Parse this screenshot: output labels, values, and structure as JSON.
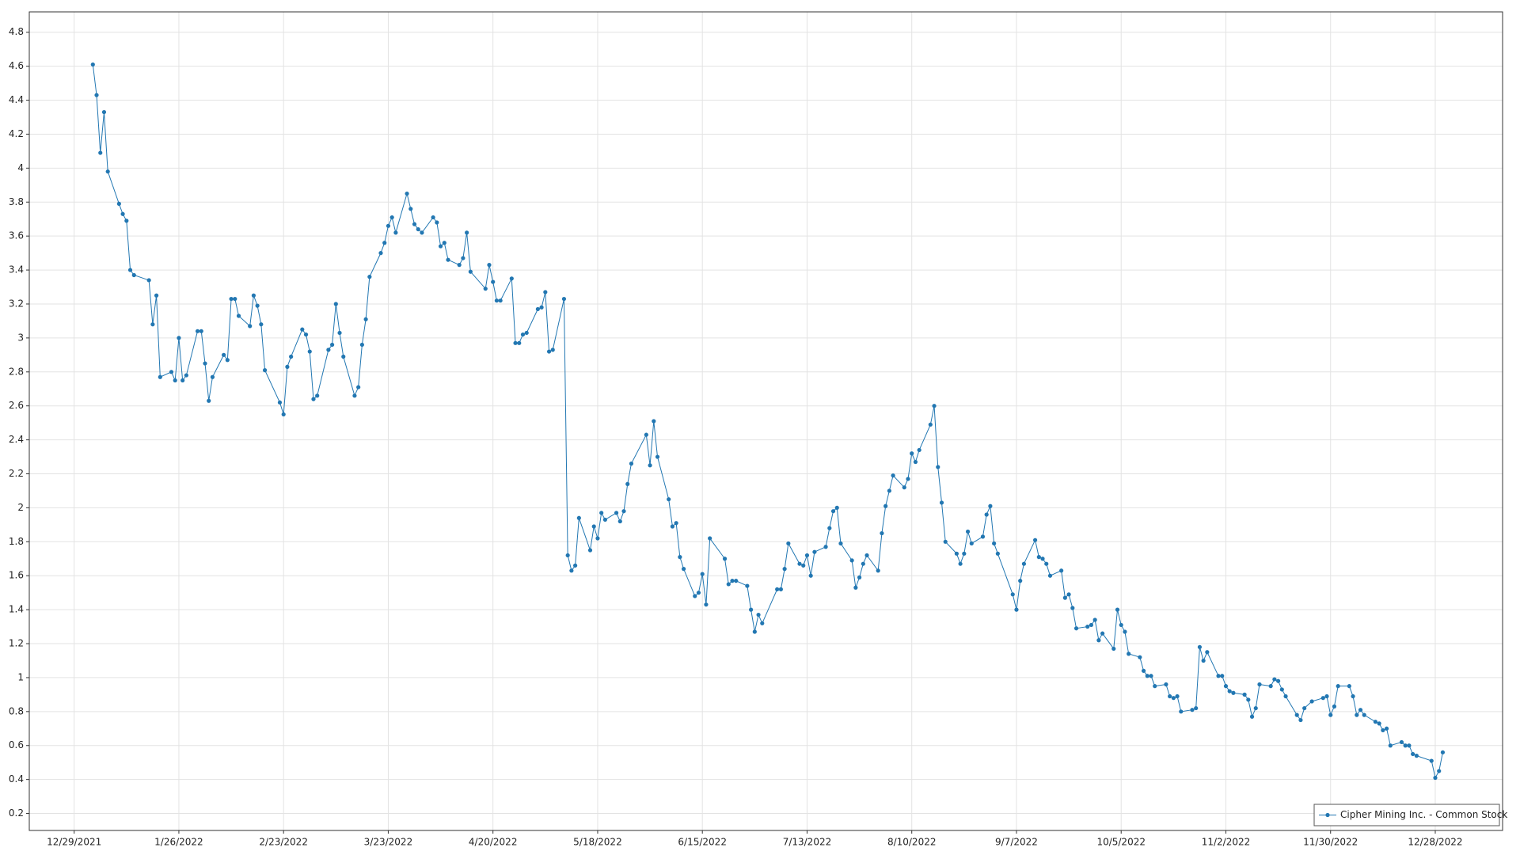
{
  "chart_data": {
    "type": "line",
    "x": [
      "1/3/2022",
      "1/4/2022",
      "1/5/2022",
      "1/6/2022",
      "1/7/2022",
      "1/10/2022",
      "1/11/2022",
      "1/12/2022",
      "1/13/2022",
      "1/14/2022",
      "1/18/2022",
      "1/19/2022",
      "1/20/2022",
      "1/21/2022",
      "1/24/2022",
      "1/25/2022",
      "1/26/2022",
      "1/27/2022",
      "1/28/2022",
      "1/31/2022",
      "2/1/2022",
      "2/2/2022",
      "2/3/2022",
      "2/4/2022",
      "2/7/2022",
      "2/8/2022",
      "2/9/2022",
      "2/10/2022",
      "2/11/2022",
      "2/14/2022",
      "2/15/2022",
      "2/16/2022",
      "2/17/2022",
      "2/18/2022",
      "2/22/2022",
      "2/23/2022",
      "2/24/2022",
      "2/25/2022",
      "2/28/2022",
      "3/1/2022",
      "3/2/2022",
      "3/3/2022",
      "3/4/2022",
      "3/7/2022",
      "3/8/2022",
      "3/9/2022",
      "3/10/2022",
      "3/11/2022",
      "3/14/2022",
      "3/15/2022",
      "3/16/2022",
      "3/17/2022",
      "3/18/2022",
      "3/21/2022",
      "3/22/2022",
      "3/23/2022",
      "3/24/2022",
      "3/25/2022",
      "3/28/2022",
      "3/29/2022",
      "3/30/2022",
      "3/31/2022",
      "4/1/2022",
      "4/4/2022",
      "4/5/2022",
      "4/6/2022",
      "4/7/2022",
      "4/8/2022",
      "4/11/2022",
      "4/12/2022",
      "4/13/2022",
      "4/14/2022",
      "4/18/2022",
      "4/19/2022",
      "4/20/2022",
      "4/21/2022",
      "4/22/2022",
      "4/25/2022",
      "4/26/2022",
      "4/27/2022",
      "4/28/2022",
      "4/29/2022",
      "5/2/2022",
      "5/3/2022",
      "5/4/2022",
      "5/5/2022",
      "5/6/2022",
      "5/9/2022",
      "5/10/2022",
      "5/11/2022",
      "5/12/2022",
      "5/13/2022",
      "5/16/2022",
      "5/17/2022",
      "5/18/2022",
      "5/19/2022",
      "5/20/2022",
      "5/23/2022",
      "5/24/2022",
      "5/25/2022",
      "5/26/2022",
      "5/27/2022",
      "5/31/2022",
      "6/1/2022",
      "6/2/2022",
      "6/3/2022",
      "6/6/2022",
      "6/7/2022",
      "6/8/2022",
      "6/9/2022",
      "6/10/2022",
      "6/13/2022",
      "6/14/2022",
      "6/15/2022",
      "6/16/2022",
      "6/17/2022",
      "6/21/2022",
      "6/22/2022",
      "6/23/2022",
      "6/24/2022",
      "6/27/2022",
      "6/28/2022",
      "6/29/2022",
      "6/30/2022",
      "7/1/2022",
      "7/5/2022",
      "7/6/2022",
      "7/7/2022",
      "7/8/2022",
      "7/11/2022",
      "7/12/2022",
      "7/13/2022",
      "7/14/2022",
      "7/15/2022",
      "7/18/2022",
      "7/19/2022",
      "7/20/2022",
      "7/21/2022",
      "7/22/2022",
      "7/25/2022",
      "7/26/2022",
      "7/27/2022",
      "7/28/2022",
      "7/29/2022",
      "8/1/2022",
      "8/2/2022",
      "8/3/2022",
      "8/4/2022",
      "8/5/2022",
      "8/8/2022",
      "8/9/2022",
      "8/10/2022",
      "8/11/2022",
      "8/12/2022",
      "8/15/2022",
      "8/16/2022",
      "8/17/2022",
      "8/18/2022",
      "8/19/2022",
      "8/22/2022",
      "8/23/2022",
      "8/24/2022",
      "8/25/2022",
      "8/26/2022",
      "8/29/2022",
      "8/30/2022",
      "8/31/2022",
      "9/1/2022",
      "9/2/2022",
      "9/6/2022",
      "9/7/2022",
      "9/8/2022",
      "9/9/2022",
      "9/12/2022",
      "9/13/2022",
      "9/14/2022",
      "9/15/2022",
      "9/16/2022",
      "9/19/2022",
      "9/20/2022",
      "9/21/2022",
      "9/22/2022",
      "9/23/2022",
      "9/26/2022",
      "9/27/2022",
      "9/28/2022",
      "9/29/2022",
      "9/30/2022",
      "10/3/2022",
      "10/4/2022",
      "10/5/2022",
      "10/6/2022",
      "10/7/2022",
      "10/10/2022",
      "10/11/2022",
      "10/12/2022",
      "10/13/2022",
      "10/14/2022",
      "10/17/2022",
      "10/18/2022",
      "10/19/2022",
      "10/20/2022",
      "10/21/2022",
      "10/24/2022",
      "10/25/2022",
      "10/26/2022",
      "10/27/2022",
      "10/28/2022",
      "10/31/2022",
      "11/1/2022",
      "11/2/2022",
      "11/3/2022",
      "11/4/2022",
      "11/7/2022",
      "11/8/2022",
      "11/9/2022",
      "11/10/2022",
      "11/11/2022",
      "11/14/2022",
      "11/15/2022",
      "11/16/2022",
      "11/17/2022",
      "11/18/2022",
      "11/21/2022",
      "11/22/2022",
      "11/23/2022",
      "11/25/2022",
      "11/28/2022",
      "11/29/2022",
      "11/30/2022",
      "12/1/2022",
      "12/2/2022",
      "12/5/2022",
      "12/6/2022",
      "12/7/2022",
      "12/8/2022",
      "12/9/2022",
      "12/12/2022",
      "12/13/2022",
      "12/14/2022",
      "12/15/2022",
      "12/16/2022",
      "12/19/2022",
      "12/20/2022",
      "12/21/2022",
      "12/22/2022",
      "12/23/2022",
      "12/27/2022",
      "12/28/2022",
      "12/29/2022",
      "12/30/2022"
    ],
    "series": [
      {
        "name": "Cipher Mining Inc. - Common Stock",
        "color": "#2277b2",
        "values": [
          4.61,
          4.43,
          4.09,
          4.33,
          3.98,
          3.79,
          3.73,
          3.69,
          3.4,
          3.37,
          3.34,
          3.08,
          3.25,
          2.77,
          2.8,
          2.75,
          3.0,
          2.75,
          2.78,
          3.04,
          3.04,
          2.85,
          2.63,
          2.77,
          2.9,
          2.87,
          3.23,
          3.23,
          3.13,
          3.07,
          3.25,
          3.19,
          3.08,
          2.81,
          2.62,
          2.55,
          2.83,
          2.89,
          3.05,
          3.02,
          2.92,
          2.64,
          2.66,
          2.93,
          2.96,
          3.2,
          3.03,
          2.89,
          2.66,
          2.71,
          2.96,
          3.11,
          3.36,
          3.5,
          3.56,
          3.66,
          3.71,
          3.62,
          3.85,
          3.76,
          3.67,
          3.64,
          3.62,
          3.71,
          3.68,
          3.54,
          3.56,
          3.46,
          3.43,
          3.47,
          3.62,
          3.39,
          3.29,
          3.43,
          3.33,
          3.22,
          3.22,
          3.35,
          2.97,
          2.97,
          3.02,
          3.03,
          3.17,
          3.18,
          3.27,
          2.92,
          2.93,
          3.23,
          1.72,
          1.63,
          1.66,
          1.94,
          1.75,
          1.89,
          1.82,
          1.97,
          1.93,
          1.97,
          1.92,
          1.98,
          2.14,
          2.26,
          2.43,
          2.25,
          2.51,
          2.3,
          2.05,
          1.89,
          1.91,
          1.71,
          1.64,
          1.48,
          1.5,
          1.61,
          1.43,
          1.82,
          1.7,
          1.55,
          1.57,
          1.57,
          1.54,
          1.4,
          1.27,
          1.37,
          1.32,
          1.52,
          1.52,
          1.64,
          1.79,
          1.67,
          1.66,
          1.72,
          1.6,
          1.74,
          1.77,
          1.88,
          1.98,
          2.0,
          1.79,
          1.69,
          1.53,
          1.59,
          1.67,
          1.72,
          1.63,
          1.85,
          2.01,
          2.1,
          2.19,
          2.12,
          2.17,
          2.32,
          2.27,
          2.34,
          2.49,
          2.6,
          2.24,
          2.03,
          1.8,
          1.73,
          1.67,
          1.73,
          1.86,
          1.79,
          1.83,
          1.96,
          2.01,
          1.79,
          1.73,
          1.49,
          1.4,
          1.57,
          1.67,
          1.81,
          1.71,
          1.7,
          1.67,
          1.6,
          1.63,
          1.47,
          1.49,
          1.41,
          1.29,
          1.3,
          1.31,
          1.34,
          1.22,
          1.26,
          1.17,
          1.4,
          1.31,
          1.27,
          1.14,
          1.12,
          1.04,
          1.01,
          1.01,
          0.95,
          0.96,
          0.89,
          0.88,
          0.89,
          0.8,
          0.81,
          0.82,
          1.18,
          1.1,
          1.15,
          1.01,
          1.01,
          0.95,
          0.92,
          0.91,
          0.9,
          0.87,
          0.77,
          0.82,
          0.96,
          0.95,
          0.99,
          0.98,
          0.93,
          0.89,
          0.78,
          0.75,
          0.82,
          0.86,
          0.88,
          0.89,
          0.78,
          0.83,
          0.95,
          0.95,
          0.89,
          0.78,
          0.81,
          0.78,
          0.74,
          0.73,
          0.69,
          0.7,
          0.6,
          0.62,
          0.6,
          0.6,
          0.55,
          0.54,
          0.51,
          0.41,
          0.45,
          0.56
        ]
      }
    ],
    "xlim": [
      "12/17/2021",
      "1/15/2023"
    ],
    "xticks": [
      "12/29/2021",
      "1/26/2022",
      "2/23/2022",
      "3/23/2022",
      "4/20/2022",
      "5/18/2022",
      "6/15/2022",
      "7/13/2022",
      "8/10/2022",
      "9/7/2022",
      "10/5/2022",
      "11/2/2022",
      "11/30/2022",
      "12/28/2022"
    ],
    "ylim": [
      0.1,
      4.92
    ],
    "yticks": [
      0.2,
      0.4,
      0.6,
      0.8,
      1,
      1.2,
      1.4,
      1.6,
      1.8,
      2,
      2.2,
      2.4,
      2.6,
      2.8,
      3,
      3.2,
      3.4,
      3.6,
      3.8,
      4,
      4.2,
      4.4,
      4.6,
      4.8
    ],
    "grid": true,
    "legend": "lower right"
  }
}
